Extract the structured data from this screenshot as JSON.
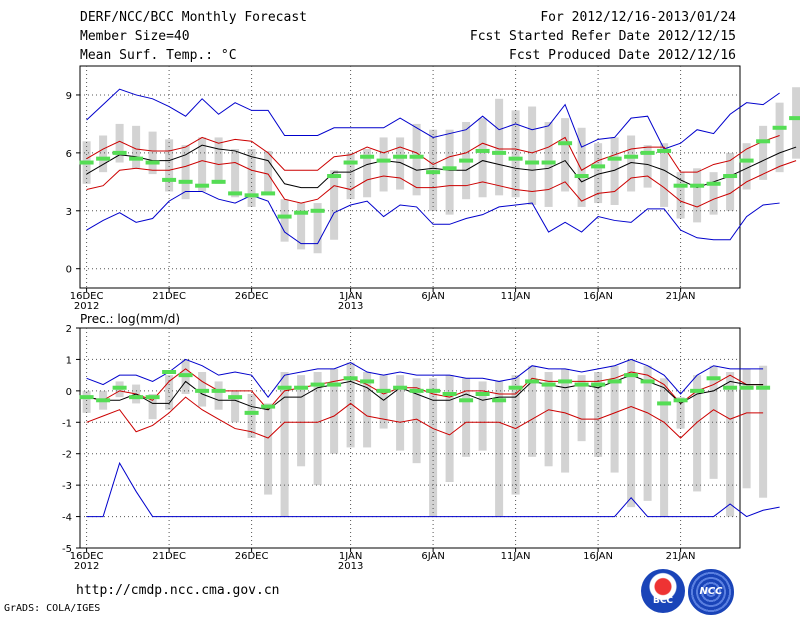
{
  "header": {
    "title": "DERF/NCC/BCC Monthly Forecast",
    "member_size": "Member Size=40",
    "variable": "Mean Surf. Temp.: °C",
    "period": "For 2012/12/16-2013/01/24",
    "started": "Fcst Started Refer Date 2012/12/15",
    "produced": "Fcst Produced Date 2012/12/16"
  },
  "footer": {
    "url": "http://cmdp.ncc.cma.gov.cn",
    "grads": "GrADS: COLA/IGES",
    "logo_left": "BCC",
    "logo_right": "NCC"
  },
  "colors": {
    "box": "#d3d3d3",
    "median": "#55dd55",
    "envelope": "#0000cc",
    "spread": "#cc0000",
    "mean": "#000000",
    "grid": "#555555"
  },
  "chart_data": [
    {
      "type": "line",
      "title": "Mean Surf. Temp.: °C",
      "ylabel": "Mean Surf. Temp.: °C",
      "ylim": [
        -1,
        10.5
      ],
      "yticks": [
        0,
        3,
        6,
        9
      ],
      "x_day_count": 40,
      "x_ticks": [
        {
          "day": 1,
          "label": "16DEC",
          "sub": "2012"
        },
        {
          "day": 6,
          "label": "21DEC",
          "sub": ""
        },
        {
          "day": 11,
          "label": "26DEC",
          "sub": ""
        },
        {
          "day": 17,
          "label": "1JAN",
          "sub": "2013"
        },
        {
          "day": 22,
          "label": "6JAN",
          "sub": ""
        },
        {
          "day": 27,
          "label": "11JAN",
          "sub": ""
        },
        {
          "day": 32,
          "label": "16JAN",
          "sub": ""
        },
        {
          "day": 37,
          "label": "21JAN",
          "sub": ""
        }
      ],
      "series": [
        {
          "name": "ensemble max",
          "values": [
            7.7,
            8.5,
            9.3,
            9.0,
            8.8,
            8.4,
            7.9,
            8.8,
            8.0,
            8.6,
            8.2,
            8.2,
            6.9,
            6.9,
            6.9,
            7.3,
            7.3,
            7.3,
            7.3,
            7.8,
            7.3,
            6.8,
            7.0,
            7.2,
            7.9,
            7.2,
            7.5,
            7.2,
            7.4,
            8.5,
            6.3,
            6.7,
            6.8,
            7.8,
            7.9,
            6.2,
            6.5,
            7.2,
            7.0,
            8.0,
            8.6,
            8.5,
            9.1
          ]
        },
        {
          "name": "spread upper",
          "values": [
            5.7,
            6.2,
            6.6,
            6.2,
            6.1,
            6.1,
            6.3,
            6.8,
            6.5,
            6.7,
            6.6,
            6.0,
            5.1,
            5.1,
            5.1,
            5.8,
            5.9,
            6.3,
            6.0,
            6.3,
            6.0,
            5.4,
            5.8,
            6.0,
            6.5,
            6.2,
            6.2,
            6.0,
            6.3,
            6.8,
            5.1,
            5.6,
            5.9,
            6.2,
            6.3,
            6.3,
            5.0,
            5.0,
            5.4,
            5.6,
            6.2,
            6.6,
            6.9
          ]
        },
        {
          "name": "ensemble mean",
          "values": [
            4.9,
            5.4,
            5.9,
            5.8,
            5.6,
            5.6,
            5.9,
            6.4,
            6.2,
            6.1,
            5.8,
            5.6,
            4.4,
            4.2,
            4.2,
            5.0,
            5.0,
            5.4,
            5.6,
            5.5,
            5.1,
            5.2,
            5.1,
            5.1,
            5.6,
            5.4,
            5.2,
            5.1,
            5.2,
            5.6,
            4.5,
            4.9,
            5.1,
            5.5,
            5.4,
            5.1,
            4.6,
            4.2,
            4.5,
            4.8,
            5.2,
            5.6,
            6.0,
            6.3
          ]
        },
        {
          "name": "spread lower",
          "values": [
            4.1,
            4.3,
            5.1,
            5.2,
            5.1,
            5.1,
            5.3,
            5.6,
            5.4,
            5.5,
            5.1,
            4.9,
            3.6,
            3.4,
            3.6,
            4.3,
            4.1,
            4.6,
            4.8,
            4.7,
            4.2,
            4.2,
            4.3,
            4.3,
            4.5,
            4.3,
            4.1,
            4.0,
            4.1,
            4.5,
            3.5,
            3.9,
            4.0,
            4.7,
            4.8,
            4.2,
            3.5,
            3.2,
            3.6,
            3.9,
            4.5,
            4.9,
            5.3,
            5.6
          ]
        },
        {
          "name": "ensemble min",
          "values": [
            2.0,
            2.5,
            2.9,
            2.4,
            2.6,
            3.5,
            4.0,
            4.0,
            3.6,
            3.4,
            3.8,
            3.5,
            1.9,
            1.3,
            1.3,
            2.9,
            3.3,
            3.5,
            2.7,
            3.3,
            3.2,
            2.3,
            2.3,
            2.6,
            2.8,
            3.2,
            3.3,
            3.4,
            1.9,
            2.4,
            1.9,
            2.7,
            2.5,
            2.4,
            3.1,
            3.1,
            2.0,
            1.6,
            1.5,
            1.5,
            2.7,
            3.3,
            3.4
          ]
        }
      ],
      "boxes": {
        "low": [
          4.4,
          5.0,
          5.5,
          5.2,
          4.9,
          4.0,
          3.6,
          4.0,
          4.4,
          3.7,
          3.2,
          3.9,
          1.4,
          1.0,
          0.8,
          1.5,
          3.6,
          3.7,
          4.0,
          4.1,
          3.8,
          3.0,
          2.8,
          3.6,
          3.7,
          3.8,
          3.7,
          3.3,
          3.2,
          4.0,
          3.2,
          3.4,
          3.3,
          4.0,
          4.2,
          3.2,
          2.6,
          2.4,
          2.8,
          3.0,
          4.1,
          4.6,
          5.0,
          5.7
        ],
        "high": [
          6.6,
          6.9,
          7.5,
          7.4,
          7.1,
          6.7,
          6.4,
          6.8,
          6.8,
          6.2,
          6.2,
          6.1,
          3.6,
          3.4,
          3.4,
          5.1,
          6.0,
          6.2,
          6.8,
          6.8,
          7.5,
          7.2,
          7.2,
          7.6,
          7.8,
          8.8,
          8.2,
          8.4,
          7.6,
          7.8,
          7.3,
          6.5,
          6.8,
          6.9,
          6.4,
          6.5,
          5.0,
          5.2,
          5.0,
          6.0,
          6.5,
          7.4,
          8.6,
          9.4
        ],
        "median": [
          5.5,
          5.7,
          6.0,
          5.7,
          5.5,
          4.6,
          4.5,
          4.3,
          4.5,
          3.9,
          3.8,
          3.9,
          2.7,
          2.9,
          3.0,
          4.8,
          5.5,
          5.8,
          5.6,
          5.8,
          5.8,
          5.0,
          5.2,
          5.6,
          6.1,
          6.0,
          5.7,
          5.5,
          5.5,
          6.5,
          4.8,
          5.3,
          5.7,
          5.8,
          6.0,
          6.1,
          4.3,
          4.3,
          4.4,
          4.8,
          5.6,
          6.6,
          7.3,
          7.8
        ]
      }
    },
    {
      "type": "line",
      "title": "Prec.: log(mm/d)",
      "ylabel": "Prec.: log(mm/d)",
      "ylim": [
        -5,
        2
      ],
      "yticks": [
        -5,
        -4,
        -3,
        -2,
        -1,
        0,
        1,
        2
      ],
      "x_day_count": 40,
      "x_ticks": [
        {
          "day": 1,
          "label": "16DEC",
          "sub": "2012"
        },
        {
          "day": 6,
          "label": "21DEC",
          "sub": ""
        },
        {
          "day": 11,
          "label": "26DEC",
          "sub": ""
        },
        {
          "day": 17,
          "label": "1JAN",
          "sub": "2013"
        },
        {
          "day": 22,
          "label": "6JAN",
          "sub": ""
        },
        {
          "day": 27,
          "label": "11JAN",
          "sub": ""
        },
        {
          "day": 32,
          "label": "16JAN",
          "sub": ""
        },
        {
          "day": 37,
          "label": "21JAN",
          "sub": ""
        }
      ],
      "series": [
        {
          "name": "ensemble max",
          "values": [
            0.4,
            0.2,
            0.5,
            0.5,
            0.3,
            0.6,
            1.0,
            0.8,
            0.5,
            0.6,
            0.5,
            -0.2,
            0.5,
            0.6,
            0.7,
            0.7,
            0.9,
            0.6,
            0.5,
            0.6,
            0.5,
            0.5,
            0.5,
            0.4,
            0.4,
            0.3,
            0.4,
            0.8,
            0.7,
            0.7,
            0.6,
            0.7,
            0.8,
            1.0,
            0.8,
            0.5,
            -0.1,
            0.5,
            0.8,
            0.7,
            0.7,
            0.7
          ]
        },
        {
          "name": "spread upper",
          "values": [
            -0.2,
            -0.3,
            0.0,
            -0.1,
            -0.3,
            0.3,
            0.7,
            0.3,
            0.0,
            0.0,
            0.0,
            -0.6,
            0.0,
            0.1,
            0.2,
            0.3,
            0.4,
            0.2,
            -0.1,
            0.1,
            0.1,
            -0.1,
            -0.2,
            0.0,
            0.0,
            -0.1,
            -0.1,
            0.4,
            0.3,
            0.3,
            0.3,
            0.3,
            0.4,
            0.6,
            0.5,
            0.2,
            -0.4,
            0.0,
            0.2,
            0.5,
            0.2,
            0.2
          ]
        },
        {
          "name": "ensemble mean",
          "values": [
            -0.2,
            -0.3,
            -0.3,
            -0.1,
            -0.4,
            -0.4,
            0.3,
            -0.1,
            -0.3,
            -0.3,
            -0.5,
            -0.6,
            -0.2,
            -0.2,
            0.1,
            0.2,
            0.3,
            0.1,
            -0.3,
            0.1,
            -0.1,
            -0.3,
            -0.3,
            -0.1,
            -0.3,
            -0.2,
            -0.2,
            0.3,
            0.2,
            0.1,
            0.2,
            0.1,
            0.3,
            0.5,
            0.3,
            0.1,
            -0.4,
            -0.1,
            0.0,
            0.3,
            0.2,
            0.2
          ]
        },
        {
          "name": "spread lower",
          "values": [
            -1.0,
            -0.8,
            -0.6,
            -1.3,
            -1.1,
            -0.7,
            -0.2,
            -0.6,
            -0.9,
            -1.2,
            -1.3,
            -1.5,
            -1.0,
            -1.0,
            -1.0,
            -0.8,
            -0.4,
            -0.8,
            -0.9,
            -1.0,
            -0.9,
            -1.2,
            -1.4,
            -1.0,
            -1.0,
            -1.0,
            -1.2,
            -0.9,
            -0.6,
            -0.7,
            -0.9,
            -0.9,
            -0.7,
            -0.5,
            -0.7,
            -1.0,
            -1.5,
            -1.0,
            -0.6,
            -0.9,
            -0.7,
            -0.7
          ]
        },
        {
          "name": "ensemble min",
          "values": [
            -4.0,
            -4.0,
            -2.3,
            -3.2,
            -4.0,
            -4.0,
            -4.0,
            -4.0,
            -4.0,
            -4.0,
            -4.0,
            -4.0,
            -4.0,
            -4.0,
            -4.0,
            -4.0,
            -4.0,
            -4.0,
            -4.0,
            -4.0,
            -4.0,
            -4.0,
            -4.0,
            -4.0,
            -4.0,
            -4.0,
            -4.0,
            -4.0,
            -4.0,
            -4.0,
            -4.0,
            -4.0,
            -4.0,
            -3.4,
            -4.0,
            -4.0,
            -4.0,
            -4.0,
            -4.0,
            -3.6,
            -4.0,
            -3.8,
            -3.7
          ]
        },
        {
          "name": "spread upper shadow",
          "values": [
            -0.2,
            -0.3,
            -0.3,
            -0.1,
            -0.4,
            -0.4,
            0.3,
            -0.1,
            -0.3,
            -0.3,
            -0.5,
            -0.6,
            -0.2,
            -0.2,
            0.1,
            0.2,
            0.3,
            0.1,
            -0.3,
            0.1,
            -0.1,
            -0.3,
            -0.3,
            -0.1,
            -0.3,
            -0.2,
            -0.2,
            0.3,
            0.2,
            0.1,
            0.2,
            0.1,
            0.3,
            0.5,
            0.3,
            0.1,
            -0.4,
            -0.1,
            0.0,
            0.3,
            0.2,
            0.2
          ]
        }
      ],
      "boxes": {
        "low": [
          -0.7,
          -0.6,
          -0.2,
          -0.4,
          -0.9,
          -0.6,
          -0.1,
          -0.5,
          -0.6,
          -1.0,
          -1.5,
          -3.3,
          -4.0,
          -2.4,
          -3.0,
          -2.0,
          -1.8,
          -1.8,
          -1.2,
          -1.9,
          -2.3,
          -4.0,
          -2.9,
          -2.1,
          -1.9,
          -4.0,
          -3.3,
          -2.1,
          -2.4,
          -2.6,
          -1.6,
          -2.1,
          -2.6,
          -3.7,
          -3.5,
          -4.0,
          -1.2,
          -3.2,
          -2.8,
          -4.0,
          -3.1,
          -3.4
        ],
        "high": [
          0.0,
          0.0,
          0.3,
          0.2,
          -0.1,
          0.5,
          1.0,
          0.6,
          0.3,
          0.0,
          -0.1,
          -0.4,
          0.6,
          0.5,
          0.6,
          0.7,
          0.9,
          0.6,
          0.5,
          0.5,
          0.4,
          0.4,
          0.5,
          0.4,
          0.3,
          0.3,
          0.5,
          0.8,
          0.6,
          0.7,
          0.5,
          0.6,
          0.8,
          1.0,
          0.8,
          0.4,
          -0.2,
          0.5,
          0.8,
          0.6,
          0.7,
          0.8
        ],
        "median": [
          -0.2,
          -0.3,
          0.1,
          -0.2,
          -0.2,
          0.6,
          0.5,
          0.0,
          0.0,
          -0.2,
          -0.7,
          -0.5,
          0.1,
          0.1,
          0.2,
          0.2,
          0.4,
          0.3,
          0.0,
          0.1,
          0.0,
          0.0,
          -0.1,
          -0.3,
          -0.1,
          -0.3,
          0.1,
          0.3,
          0.2,
          0.3,
          0.2,
          0.2,
          0.3,
          0.5,
          0.3,
          -0.4,
          -0.3,
          0.0,
          0.4,
          0.1,
          0.1,
          0.1
        ]
      }
    }
  ]
}
